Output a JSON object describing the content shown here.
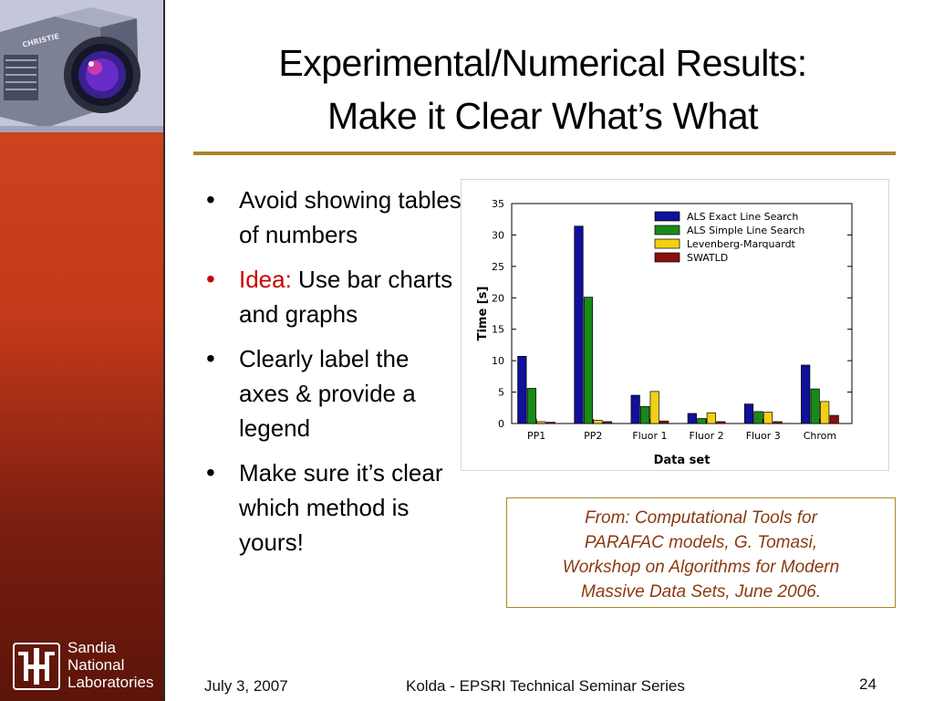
{
  "slide": {
    "title_line1": "Experimental/Numerical Results:",
    "title_line2": "Make it Clear What’s What",
    "bullets": [
      {
        "text": "Avoid showing tables of numbers"
      },
      {
        "prefix": "Idea:",
        "text": " Use bar charts and graphs"
      },
      {
        "text": "Clearly label the axes & provide a legend"
      },
      {
        "text": "Make sure it’s clear which method is yours!"
      }
    ],
    "source": {
      "line1": "From: Computational Tools for",
      "line2": "PARAFAC models, G. Tomasi,",
      "line3": "Workshop on Algorithms for Modern",
      "line4": "Massive Data Sets, June 2006."
    }
  },
  "sidebar": {
    "logo_line1": "Sandia",
    "logo_line2": "National",
    "logo_line3": "Laboratories",
    "projector_brand": "CHRISTIE"
  },
  "footer": {
    "date": "July 3, 2007",
    "center": "Kolda - EPSRI Technical Seminar Series",
    "page": "24"
  },
  "colors": {
    "accent_rule": "#a8862a",
    "highlight_red": "#cc0000",
    "source_text": "#8a3a10"
  },
  "chart_data": {
    "type": "bar",
    "xlabel": "Data set",
    "ylabel": "Time [s]",
    "ylim": [
      0,
      35
    ],
    "yticks": [
      0,
      5,
      10,
      15,
      20,
      25,
      30,
      35
    ],
    "grid": false,
    "legend_position": "top-right",
    "categories": [
      "PP1",
      "PP2",
      "Fluor 1",
      "Fluor 2",
      "Fluor 3",
      "Chrom"
    ],
    "series": [
      {
        "name": "ALS Exact Line Search",
        "color": "#10109a",
        "values": [
          10.7,
          31.4,
          4.5,
          1.6,
          3.1,
          9.3
        ]
      },
      {
        "name": "ALS Simple Line Search",
        "color": "#188a18",
        "values": [
          5.6,
          20.1,
          2.7,
          0.8,
          1.9,
          5.5
        ]
      },
      {
        "name": "Levenberg-Marquardt",
        "color": "#f2d014",
        "values": [
          0.3,
          0.5,
          5.1,
          1.7,
          1.8,
          3.5
        ]
      },
      {
        "name": "SWATLD",
        "color": "#8a1010",
        "values": [
          0.2,
          0.3,
          0.4,
          0.3,
          0.3,
          1.3
        ]
      }
    ]
  }
}
